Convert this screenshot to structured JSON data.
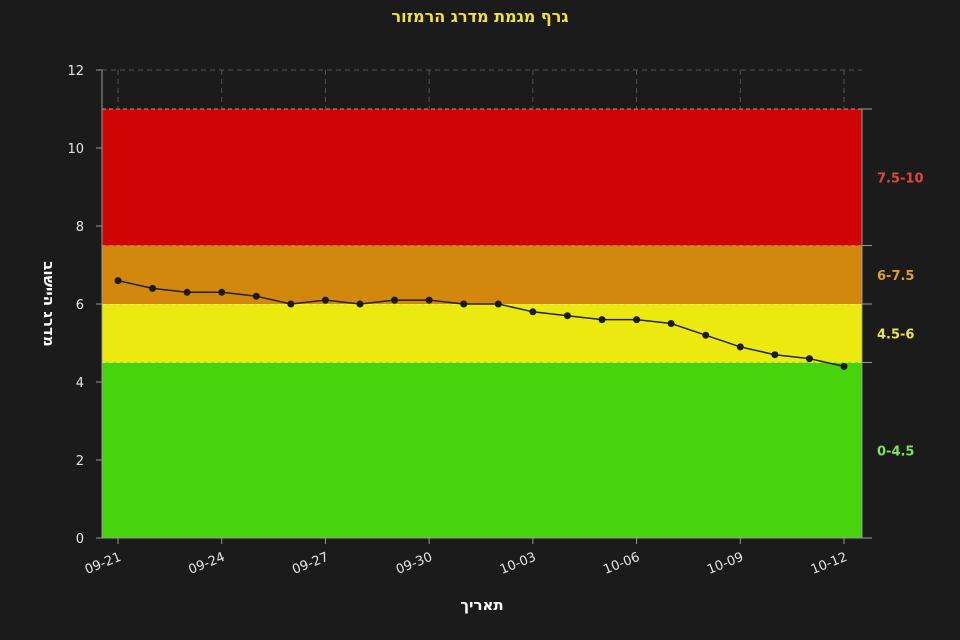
{
  "chart_data": {
    "type": "line",
    "title": "גרף מגמת מדרג הרמזור",
    "xlabel": "תאריך",
    "ylabel": "מדרג היישוב",
    "ylim": [
      0,
      12
    ],
    "y_ticks": [
      "0",
      "2",
      "4",
      "6",
      "8",
      "10",
      "12"
    ],
    "x_tick_labels": [
      "09-21",
      "09-24",
      "09-27",
      "09-30",
      "10-03",
      "10-06",
      "10-09",
      "10-12"
    ],
    "x": [
      "09-21",
      "09-22",
      "09-23",
      "09-24",
      "09-25",
      "09-26",
      "09-27",
      "09-28",
      "09-29",
      "09-30",
      "10-01",
      "10-02",
      "10-03",
      "10-04",
      "10-05",
      "10-06",
      "10-07",
      "10-08",
      "10-09",
      "10-10",
      "10-11",
      "10-12"
    ],
    "series": [
      {
        "values": [
          6.6,
          6.4,
          6.3,
          6.3,
          6.2,
          6.0,
          6.1,
          6.0,
          6.1,
          6.1,
          6.0,
          6.0,
          5.8,
          5.7,
          5.6,
          5.6,
          5.5,
          5.2,
          4.9,
          4.7,
          4.6,
          4.4
        ]
      }
    ],
    "bands": [
      {
        "label": "0-4.5",
        "from": 0,
        "to": 4.5,
        "color": "#48d40c",
        "text_color": "#7fe35a"
      },
      {
        "label": "4.5-6",
        "from": 4.5,
        "to": 6,
        "color": "#ece911",
        "text_color": "#ece64a"
      },
      {
        "label": "6-7.5",
        "from": 6,
        "to": 7.5,
        "color": "#d1880c",
        "text_color": "#e39e2a"
      },
      {
        "label": "7.5-10",
        "from": 7.5,
        "to": 11,
        "color": "#cf0505",
        "text_color": "#e04a3a"
      }
    ],
    "grid": true,
    "line_color": "#222222",
    "point_color": "#1a1a1a"
  }
}
